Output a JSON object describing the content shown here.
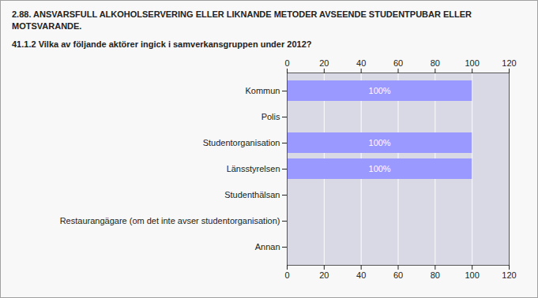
{
  "chart_data": {
    "type": "bar",
    "orientation": "horizontal",
    "title": "2.88. ANSVARSFULL ALKOHOLSERVERING ELLER LIKNANDE METODER AVSEENDE STUDENTPUBAR ELLER MOTSVARANDE.",
    "subtitle": "41.1.2 Vilka av följande aktörer ingick i samverkansgruppen under 2012?",
    "categories": [
      "Kommun",
      "Polis",
      "Studentorganisation",
      "Länsstyrelsen",
      "Studenthälsan",
      "Restaurangägare (om det inte avser studentorganisation)",
      "Annan"
    ],
    "values": [
      100,
      0,
      100,
      100,
      0,
      0,
      0
    ],
    "value_labels": [
      "100%",
      null,
      "100%",
      "100%",
      null,
      null,
      null
    ],
    "color": "#9999ff",
    "xlim": [
      0,
      120
    ],
    "xticks": [
      0,
      20,
      40,
      60,
      80,
      100,
      120
    ],
    "grid": true,
    "data_labels": true
  }
}
